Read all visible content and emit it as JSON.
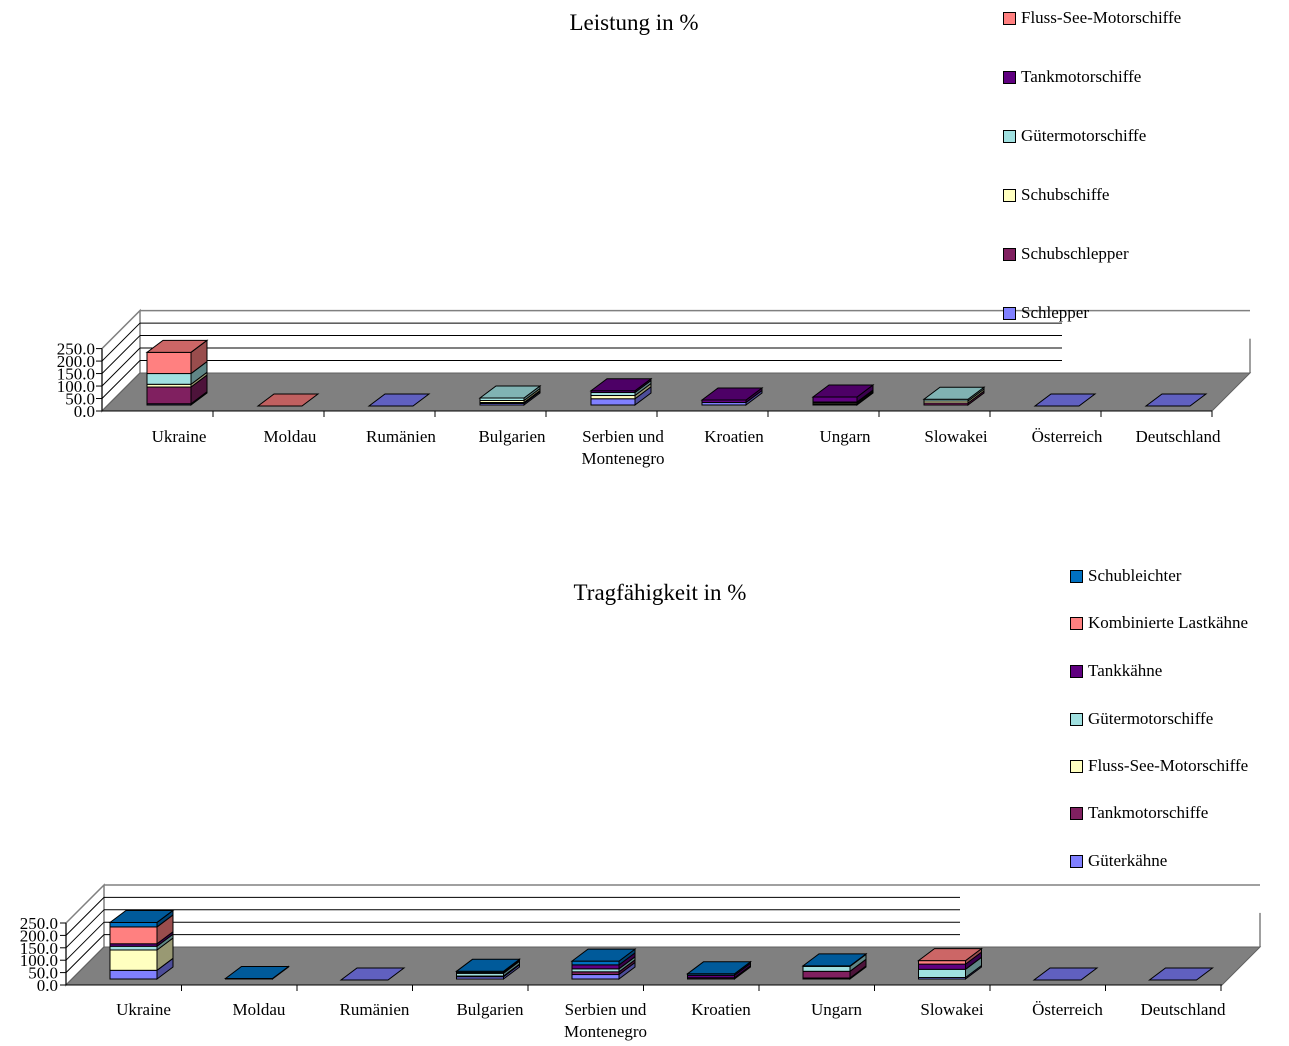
{
  "chart_data": [
    {
      "type": "bar",
      "stacked": true,
      "three_d": true,
      "title": "Leistung in %",
      "xlabel": "",
      "ylabel": "",
      "ylim": [
        0,
        250
      ],
      "yticks": [
        "0.0",
        "50.0",
        "100.0",
        "150.0",
        "200.0",
        "250.0"
      ],
      "grid": true,
      "legend_position": "right",
      "categories": [
        "Ukraine",
        "Moldau",
        "Rumänien",
        "Bulgarien",
        "Serbien und Montenegro",
        "Kroatien",
        "Ungarn",
        "Slowakei",
        "Österreich",
        "Deutschland"
      ],
      "series": [
        {
          "name": "Schlepper",
          "color": "#8080ff",
          "values": [
            5,
            0,
            0,
            6,
            25,
            10,
            0,
            0,
            0,
            0
          ]
        },
        {
          "name": "Schubschlepper",
          "color": "#802060",
          "values": [
            67,
            0,
            0,
            4,
            0,
            0,
            4,
            8,
            0,
            0
          ]
        },
        {
          "name": "Schubschiffe",
          "color": "#ffffc0",
          "values": [
            11,
            0,
            0,
            8,
            13,
            0,
            5,
            8,
            0,
            0
          ]
        },
        {
          "name": "Gütermotorschiffe",
          "color": "#a0e0e0",
          "values": [
            43,
            0,
            0,
            10,
            12,
            0,
            3,
            7,
            0,
            0
          ]
        },
        {
          "name": "Tankmotorschiffe",
          "color": "#600080",
          "values": [
            0,
            0,
            0,
            0,
            7,
            10,
            20,
            0,
            0,
            0
          ]
        },
        {
          "name": "Fluss-See-Motorschiffe",
          "color": "#ff8080",
          "values": [
            85,
            0,
            0,
            0,
            0,
            0,
            0,
            0,
            0,
            0
          ]
        }
      ]
    },
    {
      "type": "bar",
      "stacked": true,
      "three_d": true,
      "title": "Tragfähigkeit in %",
      "xlabel": "",
      "ylabel": "",
      "ylim": [
        0,
        250
      ],
      "yticks": [
        "0.0",
        "50.0",
        "100.0",
        "150.0",
        "200.0",
        "250.0"
      ],
      "grid": true,
      "legend_position": "right",
      "categories": [
        "Ukraine",
        "Moldau",
        "Rumänien",
        "Bulgarien",
        "Serbien und Montenegro",
        "Kroatien",
        "Ungarn",
        "Slowakei",
        "Österreich",
        "Deutschland"
      ],
      "series": [
        {
          "name": "Güterkähne",
          "color": "#8080ff",
          "values": [
            35,
            0,
            0,
            9,
            18,
            0,
            4,
            6,
            0,
            0
          ]
        },
        {
          "name": "Tankmotorschiffe",
          "color": "#802060",
          "values": [
            0,
            0,
            0,
            3,
            11,
            5,
            27,
            0,
            0,
            0
          ]
        },
        {
          "name": "Fluss-See-Motorschiffe",
          "color": "#ffffc0",
          "values": [
            82,
            0,
            0,
            0,
            0,
            0,
            0,
            0,
            0,
            0
          ]
        },
        {
          "name": "Gütermotorschiffe",
          "color": "#a0e0e0",
          "values": [
            15,
            0,
            0,
            11,
            12,
            0,
            20,
            33,
            0,
            0
          ]
        },
        {
          "name": "Tankkähne",
          "color": "#600080",
          "values": [
            10,
            0,
            0,
            3,
            16,
            10,
            0,
            21,
            0,
            0
          ]
        },
        {
          "name": "Kombinierte Lastkähne",
          "color": "#ff8080",
          "values": [
            68,
            0,
            0,
            0,
            0,
            0,
            0,
            14,
            0,
            0
          ]
        },
        {
          "name": "Schubleichter",
          "color": "#0070c0",
          "values": [
            18,
            2,
            0,
            5,
            15,
            6,
            2,
            0,
            0,
            0
          ]
        }
      ]
    }
  ]
}
